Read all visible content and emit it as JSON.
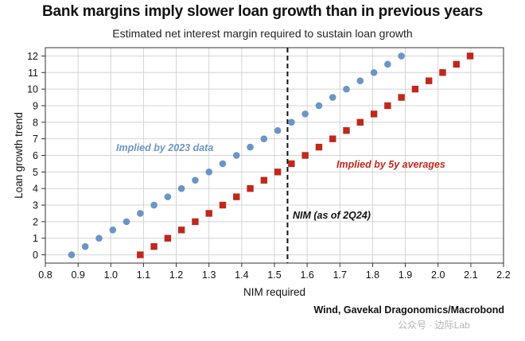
{
  "title": "Bank margins imply slower loan growth than in previous years",
  "subtitle": "Estimated net interest margin required to sustain loan growth",
  "source": "Wind, Gavekal Dragonomics/Macrobond",
  "watermark": "公众号 · 边际Lab",
  "chart_data": {
    "type": "scatter",
    "title": "Bank margins imply slower loan growth than in previous years",
    "subtitle": "Estimated net interest margin required to sustain loan growth",
    "xlabel": "NIM required",
    "ylabel": "Loan growth trend",
    "xlim": [
      0.8,
      2.2
    ],
    "ylim": [
      -0.5,
      12.5
    ],
    "xticks": [
      0.8,
      0.9,
      1.0,
      1.1,
      1.2,
      1.3,
      1.4,
      1.5,
      1.6,
      1.7,
      1.8,
      1.9,
      2.0,
      2.1,
      2.2
    ],
    "yticks": [
      0,
      1,
      2,
      3,
      4,
      5,
      6,
      7,
      8,
      9,
      10,
      11,
      12
    ],
    "grid": true,
    "series": [
      {
        "name": "Implied by 2023 data",
        "color": "#6a95c6",
        "marker": "circle",
        "points": [
          {
            "x": 0.88,
            "y": 0
          },
          {
            "x": 0.922,
            "y": 0.5
          },
          {
            "x": 0.964,
            "y": 1
          },
          {
            "x": 1.006,
            "y": 1.5
          },
          {
            "x": 1.048,
            "y": 2
          },
          {
            "x": 1.09,
            "y": 2.5
          },
          {
            "x": 1.132,
            "y": 3
          },
          {
            "x": 1.174,
            "y": 3.5
          },
          {
            "x": 1.216,
            "y": 4
          },
          {
            "x": 1.258,
            "y": 4.5
          },
          {
            "x": 1.3,
            "y": 5
          },
          {
            "x": 1.342,
            "y": 5.5
          },
          {
            "x": 1.384,
            "y": 6
          },
          {
            "x": 1.426,
            "y": 6.5
          },
          {
            "x": 1.468,
            "y": 7
          },
          {
            "x": 1.51,
            "y": 7.5
          },
          {
            "x": 1.552,
            "y": 8
          },
          {
            "x": 1.594,
            "y": 8.5
          },
          {
            "x": 1.636,
            "y": 9
          },
          {
            "x": 1.678,
            "y": 9.5
          },
          {
            "x": 1.72,
            "y": 10
          },
          {
            "x": 1.762,
            "y": 10.5
          },
          {
            "x": 1.804,
            "y": 11
          },
          {
            "x": 1.846,
            "y": 11.5
          },
          {
            "x": 1.888,
            "y": 12
          }
        ]
      },
      {
        "name": "Implied by 5y averages",
        "color": "#c0281c",
        "marker": "square",
        "points": [
          {
            "x": 1.09,
            "y": 0
          },
          {
            "x": 1.132,
            "y": 0.5
          },
          {
            "x": 1.174,
            "y": 1
          },
          {
            "x": 1.216,
            "y": 1.5
          },
          {
            "x": 1.258,
            "y": 2
          },
          {
            "x": 1.3,
            "y": 2.5
          },
          {
            "x": 1.342,
            "y": 3
          },
          {
            "x": 1.384,
            "y": 3.5
          },
          {
            "x": 1.426,
            "y": 4
          },
          {
            "x": 1.468,
            "y": 4.5
          },
          {
            "x": 1.51,
            "y": 5
          },
          {
            "x": 1.552,
            "y": 5.5
          },
          {
            "x": 1.594,
            "y": 6
          },
          {
            "x": 1.636,
            "y": 6.5
          },
          {
            "x": 1.678,
            "y": 7
          },
          {
            "x": 1.72,
            "y": 7.5
          },
          {
            "x": 1.762,
            "y": 8
          },
          {
            "x": 1.804,
            "y": 8.5
          },
          {
            "x": 1.846,
            "y": 9
          },
          {
            "x": 1.888,
            "y": 9.5
          },
          {
            "x": 1.93,
            "y": 10
          },
          {
            "x": 1.972,
            "y": 10.5
          },
          {
            "x": 2.014,
            "y": 11
          },
          {
            "x": 2.056,
            "y": 11.5
          },
          {
            "x": 2.098,
            "y": 12
          }
        ]
      }
    ],
    "reference_line": {
      "x": 1.54,
      "label": "NIM (as of 2Q24)",
      "style": "dashed",
      "color": "#111111"
    },
    "annotations": [
      {
        "text": "Implied by 2023 data",
        "color": "#6a95c6"
      },
      {
        "text": "Implied by 5y averages",
        "color": "#c0281c"
      },
      {
        "text": "NIM (as of 2Q24)",
        "color": "#111111"
      }
    ]
  }
}
